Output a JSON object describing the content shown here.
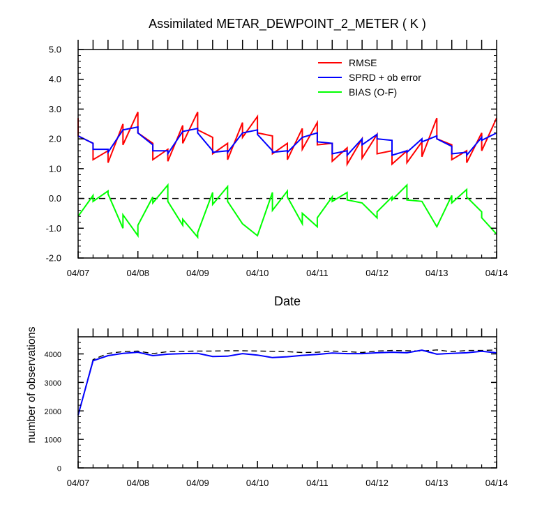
{
  "chart_data": [
    {
      "type": "line",
      "title": "Assimilated METAR_DEWPOINT_2_METER ( K )",
      "xlabel": "Date",
      "ylabel": "",
      "x_tick_labels": [
        "04/07",
        "04/08",
        "04/09",
        "04/10",
        "04/11",
        "04/12",
        "04/13",
        "04/14"
      ],
      "xlim": [
        0,
        7
      ],
      "ylim": [
        -2.0,
        5.0
      ],
      "y_ticks": [
        -2.0,
        -1.0,
        0.0,
        1.0,
        2.0,
        3.0,
        4.0,
        5.0
      ],
      "y_tick_labels": [
        "-2.0",
        "-1.0",
        "0.0",
        "1.0",
        "2.0",
        "3.0",
        "4.0",
        "5.0"
      ],
      "legend_position": "top-right",
      "reference_line": {
        "y": 0.0,
        "style": "dashed",
        "color": "#000000"
      },
      "series": [
        {
          "name": "RMSE",
          "color": "#ff0000",
          "points": [
            [
              0.0,
              2.7
            ],
            [
              0.0,
              2.1
            ],
            [
              0.25,
              1.85
            ],
            [
              0.25,
              1.3
            ],
            [
              0.5,
              1.6
            ],
            [
              0.5,
              1.2
            ],
            [
              0.75,
              2.5
            ],
            [
              0.75,
              1.8
            ],
            [
              1.0,
              2.9
            ],
            [
              1.0,
              2.2
            ],
            [
              1.25,
              1.85
            ],
            [
              1.25,
              1.3
            ],
            [
              1.5,
              1.65
            ],
            [
              1.5,
              1.25
            ],
            [
              1.75,
              2.45
            ],
            [
              1.75,
              1.85
            ],
            [
              2.0,
              2.9
            ],
            [
              2.0,
              2.3
            ],
            [
              2.25,
              2.05
            ],
            [
              2.25,
              1.5
            ],
            [
              2.5,
              1.85
            ],
            [
              2.5,
              1.3
            ],
            [
              2.75,
              2.55
            ],
            [
              2.75,
              2.05
            ],
            [
              3.0,
              2.75
            ],
            [
              3.0,
              2.2
            ],
            [
              3.25,
              2.1
            ],
            [
              3.25,
              1.5
            ],
            [
              3.5,
              1.85
            ],
            [
              3.5,
              1.3
            ],
            [
              3.75,
              2.35
            ],
            [
              3.75,
              1.65
            ],
            [
              4.0,
              2.55
            ],
            [
              4.0,
              1.8
            ],
            [
              4.25,
              1.85
            ],
            [
              4.25,
              1.25
            ],
            [
              4.5,
              1.7
            ],
            [
              4.5,
              1.15
            ],
            [
              4.75,
              2.0
            ],
            [
              4.75,
              1.35
            ],
            [
              5.0,
              2.15
            ],
            [
              5.0,
              1.5
            ],
            [
              5.25,
              1.6
            ],
            [
              5.25,
              1.15
            ],
            [
              5.5,
              1.6
            ],
            [
              5.5,
              1.2
            ],
            [
              5.75,
              1.9
            ],
            [
              5.75,
              1.4
            ],
            [
              6.0,
              2.7
            ],
            [
              6.0,
              2.0
            ],
            [
              6.25,
              1.8
            ],
            [
              6.25,
              1.3
            ],
            [
              6.5,
              1.6
            ],
            [
              6.5,
              1.2
            ],
            [
              6.75,
              2.2
            ],
            [
              6.75,
              1.6
            ],
            [
              7.0,
              2.7
            ]
          ]
        },
        {
          "name": "SPRD + ob error",
          "color": "#0000ff",
          "points": [
            [
              0.0,
              2.1
            ],
            [
              0.25,
              1.85
            ],
            [
              0.25,
              1.65
            ],
            [
              0.5,
              1.65
            ],
            [
              0.5,
              1.55
            ],
            [
              0.75,
              2.3
            ],
            [
              1.0,
              2.4
            ],
            [
              1.0,
              2.2
            ],
            [
              1.25,
              1.8
            ],
            [
              1.25,
              1.6
            ],
            [
              1.5,
              1.6
            ],
            [
              1.5,
              1.5
            ],
            [
              1.75,
              2.25
            ],
            [
              2.0,
              2.35
            ],
            [
              2.0,
              2.2
            ],
            [
              2.25,
              1.6
            ],
            [
              2.25,
              1.55
            ],
            [
              2.5,
              1.6
            ],
            [
              2.5,
              1.55
            ],
            [
              2.75,
              2.2
            ],
            [
              3.0,
              2.3
            ],
            [
              3.0,
              2.15
            ],
            [
              3.25,
              1.6
            ],
            [
              3.25,
              1.55
            ],
            [
              3.5,
              1.6
            ],
            [
              3.5,
              1.55
            ],
            [
              3.75,
              2.05
            ],
            [
              4.0,
              2.2
            ],
            [
              4.0,
              1.9
            ],
            [
              4.25,
              1.85
            ],
            [
              4.25,
              1.5
            ],
            [
              4.5,
              1.6
            ],
            [
              4.5,
              1.45
            ],
            [
              4.75,
              2.0
            ],
            [
              4.75,
              1.8
            ],
            [
              5.0,
              2.15
            ],
            [
              5.0,
              2.0
            ],
            [
              5.25,
              1.95
            ],
            [
              5.25,
              1.45
            ],
            [
              5.5,
              1.6
            ],
            [
              5.5,
              1.55
            ],
            [
              5.75,
              2.0
            ],
            [
              5.75,
              1.9
            ],
            [
              6.0,
              2.1
            ],
            [
              6.0,
              2.0
            ],
            [
              6.25,
              1.75
            ],
            [
              6.25,
              1.5
            ],
            [
              6.5,
              1.55
            ],
            [
              6.5,
              1.45
            ],
            [
              6.75,
              2.05
            ],
            [
              6.75,
              1.95
            ],
            [
              7.0,
              2.2
            ]
          ]
        },
        {
          "name": "BIAS (O-F)",
          "color": "#00ff00",
          "points": [
            [
              0.0,
              -0.6
            ],
            [
              0.25,
              0.1
            ],
            [
              0.25,
              -0.1
            ],
            [
              0.5,
              0.25
            ],
            [
              0.5,
              0.15
            ],
            [
              0.75,
              -1.0
            ],
            [
              0.75,
              -0.55
            ],
            [
              1.0,
              -1.25
            ],
            [
              1.0,
              -0.9
            ],
            [
              1.25,
              0.05
            ],
            [
              1.25,
              -0.15
            ],
            [
              1.5,
              0.45
            ],
            [
              1.5,
              -0.1
            ],
            [
              1.75,
              -0.9
            ],
            [
              1.75,
              -0.7
            ],
            [
              2.0,
              -1.3
            ],
            [
              2.0,
              -1.15
            ],
            [
              2.25,
              0.2
            ],
            [
              2.25,
              -0.2
            ],
            [
              2.5,
              0.4
            ],
            [
              2.5,
              -0.1
            ],
            [
              2.75,
              -0.85
            ],
            [
              3.0,
              -1.25
            ],
            [
              3.25,
              0.2
            ],
            [
              3.25,
              -0.4
            ],
            [
              3.5,
              0.25
            ],
            [
              3.5,
              0.05
            ],
            [
              3.75,
              -0.85
            ],
            [
              3.75,
              -0.5
            ],
            [
              4.0,
              -0.95
            ],
            [
              4.0,
              -0.65
            ],
            [
              4.25,
              0.05
            ],
            [
              4.25,
              -0.1
            ],
            [
              4.5,
              0.2
            ],
            [
              4.5,
              -0.05
            ],
            [
              4.75,
              -0.15
            ],
            [
              5.0,
              -0.65
            ],
            [
              5.0,
              -0.45
            ],
            [
              5.25,
              0.05
            ],
            [
              5.25,
              -0.05
            ],
            [
              5.5,
              0.45
            ],
            [
              5.5,
              -0.05
            ],
            [
              5.75,
              -0.1
            ],
            [
              6.0,
              -0.95
            ],
            [
              6.25,
              0.1
            ],
            [
              6.25,
              -0.15
            ],
            [
              6.5,
              0.3
            ],
            [
              6.5,
              0.05
            ],
            [
              6.75,
              -0.45
            ],
            [
              6.75,
              -0.65
            ],
            [
              7.0,
              -1.2
            ]
          ]
        }
      ]
    },
    {
      "type": "line",
      "title": "",
      "xlabel": "",
      "ylabel": "number of observations",
      "x_tick_labels": [
        "04/07",
        "04/08",
        "04/09",
        "04/10",
        "04/11",
        "04/12",
        "04/13",
        "04/14"
      ],
      "xlim": [
        0,
        7
      ],
      "ylim": [
        0,
        4600
      ],
      "y_ticks": [
        0,
        1000,
        2000,
        3000,
        4000
      ],
      "y_tick_labels": [
        "0",
        "1000",
        "2000",
        "3000",
        "4000"
      ],
      "series": [
        {
          "color": "#000000",
          "style": "dashed",
          "points": [
            [
              0.0,
              1850
            ],
            [
              0.25,
              3800
            ],
            [
              0.5,
              4020
            ],
            [
              0.75,
              4080
            ],
            [
              1.0,
              4100
            ],
            [
              1.25,
              4010
            ],
            [
              1.5,
              4080
            ],
            [
              1.75,
              4090
            ],
            [
              2.0,
              4100
            ],
            [
              2.25,
              4100
            ],
            [
              2.5,
              4110
            ],
            [
              2.75,
              4110
            ],
            [
              3.0,
              4100
            ],
            [
              3.25,
              4090
            ],
            [
              3.5,
              4080
            ],
            [
              3.75,
              4050
            ],
            [
              4.0,
              4060
            ],
            [
              4.25,
              4100
            ],
            [
              4.5,
              4080
            ],
            [
              4.75,
              4050
            ],
            [
              5.0,
              4100
            ],
            [
              5.25,
              4120
            ],
            [
              5.5,
              4110
            ],
            [
              5.75,
              4100
            ],
            [
              6.0,
              4140
            ],
            [
              6.25,
              4080
            ],
            [
              6.5,
              4120
            ],
            [
              6.75,
              4120
            ],
            [
              7.0,
              4140
            ]
          ]
        },
        {
          "color": "#0000ff",
          "style": "solid",
          "points": [
            [
              0.0,
              1850
            ],
            [
              0.25,
              3760
            ],
            [
              0.5,
              3940
            ],
            [
              0.75,
              4020
            ],
            [
              1.0,
              4060
            ],
            [
              1.25,
              3940
            ],
            [
              1.5,
              3990
            ],
            [
              1.75,
              4010
            ],
            [
              2.0,
              4020
            ],
            [
              2.25,
              3910
            ],
            [
              2.5,
              3920
            ],
            [
              2.75,
              4010
            ],
            [
              3.0,
              3960
            ],
            [
              3.25,
              3870
            ],
            [
              3.5,
              3900
            ],
            [
              3.75,
              3950
            ],
            [
              4.0,
              3980
            ],
            [
              4.25,
              4030
            ],
            [
              4.5,
              4010
            ],
            [
              4.75,
              4010
            ],
            [
              5.0,
              4040
            ],
            [
              5.25,
              4060
            ],
            [
              5.5,
              4040
            ],
            [
              5.75,
              4130
            ],
            [
              6.0,
              3990
            ],
            [
              6.25,
              4020
            ],
            [
              6.5,
              4040
            ],
            [
              6.75,
              4090
            ],
            [
              7.0,
              4040
            ]
          ]
        }
      ]
    }
  ]
}
